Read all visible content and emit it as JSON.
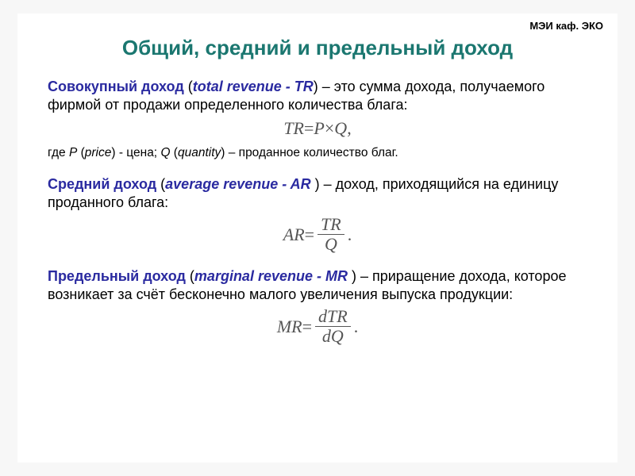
{
  "colors": {
    "title": "#1b7770",
    "term": "#2a2aa0",
    "italic": "#2a2aa0",
    "formula_text": "#555555",
    "body": "#000000",
    "background": "#ffffff"
  },
  "header_corner": "МЭИ каф. ЭКО",
  "title": "Общий, средний и предельный доход",
  "sections": {
    "tr": {
      "term": "Совокупный доход ",
      "paren_open": "(",
      "term_italic": "total revenue - TR",
      "paren_close": ")",
      "desc": " – это сумма дохода, получаемого фирмой от продажи определенного количества блага:",
      "formula_left": "TR",
      "formula_eq": " = ",
      "formula_p": "P",
      "formula_times": " × ",
      "formula_q": "Q",
      "formula_comma": ",",
      "where": "где ",
      "where_p": "P",
      "where_p_lbl_open": " (",
      "where_p_lbl": "price",
      "where_p_lbl_close": ")",
      "where_p_txt": " - цена; ",
      "where_q": "Q",
      "where_q_lbl_open": " (",
      "where_q_lbl": "quantity",
      "where_q_lbl_close": ")",
      "where_q_txt": " – проданное количество благ."
    },
    "ar": {
      "term": "Средний доход ",
      "paren_open": "(",
      "term_italic": "average revenue - AR ",
      "paren_close": ")",
      "desc": " – доход, приходящийся на единицу проданного блага:",
      "formula_left": "AR",
      "formula_eq": " = ",
      "num": "TR",
      "den": "Q",
      "dot": "."
    },
    "mr": {
      "term": "Предельный доход ",
      "paren_open": "(",
      "term_italic": "marginal revenue - MR ",
      "paren_close": ")",
      "desc": " – приращение дохода, которое возникает за счёт бесконечно малого увеличения выпуска продукции:",
      "formula_left": "MR",
      "formula_eq": " = ",
      "num": "dTR",
      "den": "dQ",
      "dot": "."
    }
  }
}
